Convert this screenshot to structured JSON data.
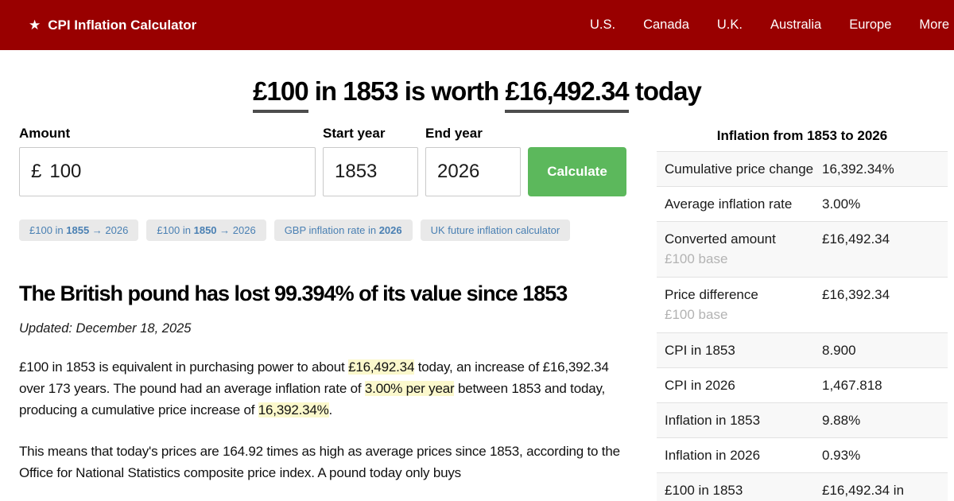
{
  "colors": {
    "header_bg": "#990000",
    "button_green": "#5cb85c",
    "link_blue": "#4a80b3",
    "highlight_yellow": "#fbf8cc"
  },
  "nav": {
    "brand": "CPI Inflation Calculator",
    "brand_icon": "star-icon",
    "items": [
      "U.S.",
      "Canada",
      "U.K.",
      "Australia",
      "Europe",
      "More"
    ]
  },
  "hero": {
    "amount": "£100",
    "mid": " in 1853 is worth ",
    "result": "£16,492.34",
    "suffix": " today"
  },
  "form": {
    "amount": {
      "label": "Amount",
      "prefix": "£",
      "value": "100"
    },
    "start_year": {
      "label": "Start year",
      "value": "1853"
    },
    "end_year": {
      "label": "End year",
      "value": "2026"
    },
    "calculate_label": "Calculate"
  },
  "chips": [
    [
      {
        "t": "£100 in ",
        "b": false
      },
      {
        "t": "1855",
        "b": true
      },
      {
        "t": " → 2026",
        "b": false
      }
    ],
    [
      {
        "t": "£100 in ",
        "b": false
      },
      {
        "t": "1850",
        "b": true
      },
      {
        "t": " → 2026",
        "b": false
      }
    ],
    [
      {
        "t": "GBP inflation rate in ",
        "b": false
      },
      {
        "t": "2026",
        "b": true
      }
    ],
    [
      {
        "t": "UK future inflation calculator",
        "b": false
      }
    ]
  ],
  "article": {
    "heading": "The British pound has lost 99.394% of its value since 1853",
    "updated": "Updated: December 18, 2025",
    "p1": [
      {
        "t": "£100 in 1853 is equivalent in purchasing power to about ",
        "hl": false
      },
      {
        "t": "£16,492.34",
        "hl": true
      },
      {
        "t": " today, an increase of £16,392.34 over 173 years. The pound had an average inflation rate of ",
        "hl": false
      },
      {
        "t": "3.00% per year",
        "hl": true
      },
      {
        "t": " between 1853 and today, producing a cumulative price increase of ",
        "hl": false
      },
      {
        "t": "16,392.34%",
        "hl": true
      },
      {
        "t": ".",
        "hl": false
      }
    ],
    "p2": "This means that today's prices are 164.92 times as high as average prices since 1853, according to the Office for National Statistics composite price index. A pound today only buys"
  },
  "summary_table": {
    "title": "Inflation from 1853 to 2026",
    "rows": [
      {
        "label": "Cumulative price change",
        "sub": "",
        "value": "16,392.34%"
      },
      {
        "label": "Average inflation rate",
        "sub": "",
        "value": "3.00%"
      },
      {
        "label": "Converted amount",
        "sub": "£100 base",
        "value": "£16,492.34"
      },
      {
        "label": "Price difference",
        "sub": "£100 base",
        "value": "£16,392.34"
      },
      {
        "label": "CPI in 1853",
        "sub": "",
        "value": "8.900"
      },
      {
        "label": "CPI in 2026",
        "sub": "",
        "value": "1,467.818"
      },
      {
        "label": "Inflation in 1853",
        "sub": "",
        "value": "9.88%"
      },
      {
        "label": "Inflation in 2026",
        "sub": "",
        "value": "0.93%"
      },
      {
        "label": "£100 in 1853",
        "sub": "",
        "value": "£16,492.34 in"
      }
    ]
  }
}
